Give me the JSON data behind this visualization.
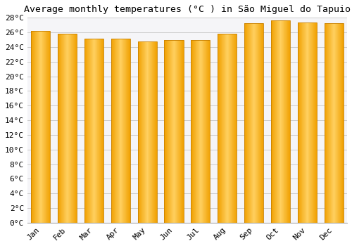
{
  "title": "Average monthly temperatures (°C ) in São Miguel do Tapuio",
  "months": [
    "Jan",
    "Feb",
    "Mar",
    "Apr",
    "May",
    "Jun",
    "Jul",
    "Aug",
    "Sep",
    "Oct",
    "Nov",
    "Dec"
  ],
  "temperatures": [
    26.2,
    25.8,
    25.1,
    25.1,
    24.8,
    25.0,
    25.0,
    25.8,
    27.3,
    27.6,
    27.4,
    27.3
  ],
  "ylim": [
    0,
    28
  ],
  "yticks": [
    0,
    2,
    4,
    6,
    8,
    10,
    12,
    14,
    16,
    18,
    20,
    22,
    24,
    26,
    28
  ],
  "bar_color_center": "#FFD060",
  "bar_color_edge": "#F0A000",
  "bar_edge_color": "#C88000",
  "background_color": "#ffffff",
  "plot_bg_color": "#f5f5f8",
  "grid_color": "#cccccc",
  "title_fontsize": 9.5,
  "tick_fontsize": 8,
  "font_family": "monospace",
  "bar_width": 0.72
}
